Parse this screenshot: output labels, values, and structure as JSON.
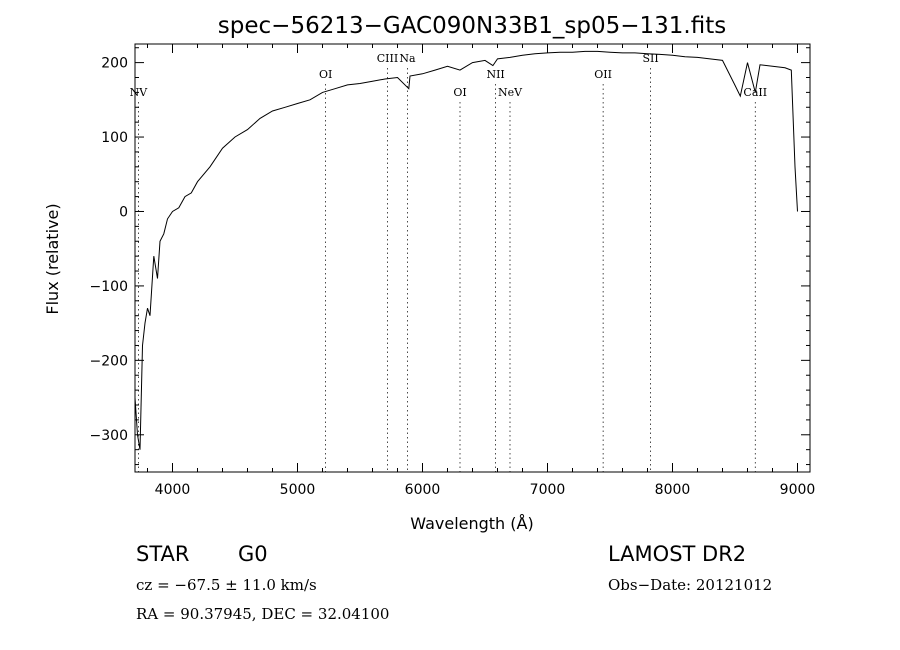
{
  "chart_data": {
    "type": "line",
    "title": "spec−56213−GAC090N33B1_sp05−131.fits",
    "xlabel": "Wavelength (Å)",
    "ylabel": "Flux (relative)",
    "xlim": [
      3700,
      9100
    ],
    "ylim": [
      -350,
      225
    ],
    "x_ticks": [
      4000,
      5000,
      6000,
      7000,
      8000,
      9000
    ],
    "y_ticks": [
      -300,
      -200,
      -100,
      0,
      100,
      200
    ],
    "y_tick_labels": [
      "−300",
      "−200",
      "−100",
      "0",
      "100",
      "200"
    ],
    "grid": false,
    "series": [
      {
        "x": [
          3700,
          3720,
          3740,
          3760,
          3780,
          3800,
          3820,
          3850,
          3880,
          3900,
          3930,
          3960,
          4000,
          4050,
          4100,
          4150,
          4200,
          4300,
          4400,
          4500,
          4600,
          4700,
          4800,
          4900,
          5000,
          5100,
          5200,
          5300,
          5400,
          5500,
          5600,
          5700,
          5800,
          5890,
          5900,
          6000,
          6100,
          6200,
          6300,
          6400,
          6500,
          6563,
          6600,
          6700,
          6800,
          6900,
          7000,
          7100,
          7200,
          7300,
          7400,
          7500,
          7600,
          7700,
          7800,
          7900,
          8000,
          8100,
          8200,
          8300,
          8400,
          8498,
          8542,
          8600,
          8662,
          8700,
          8800,
          8900,
          8950,
          8980,
          9000
        ],
        "y": [
          -250,
          -300,
          -320,
          -180,
          -150,
          -130,
          -140,
          -60,
          -90,
          -40,
          -30,
          -10,
          0,
          5,
          20,
          25,
          40,
          60,
          85,
          100,
          110,
          125,
          135,
          140,
          145,
          150,
          160,
          165,
          170,
          172,
          175,
          178,
          180,
          165,
          182,
          185,
          190,
          195,
          190,
          200,
          203,
          196,
          205,
          207,
          210,
          212,
          213,
          214,
          214,
          215,
          215,
          214,
          213,
          213,
          212,
          211,
          210,
          208,
          207,
          205,
          203,
          170,
          155,
          200,
          160,
          197,
          195,
          193,
          190,
          60,
          0
        ]
      }
    ],
    "line_markers": [
      {
        "name": "NV",
        "wavelength": 3727,
        "label_level": "low"
      },
      {
        "name": "OI",
        "wavelength": 5225,
        "label_level": "mid"
      },
      {
        "name": "CIII",
        "wavelength": 5720,
        "label_level": "high"
      },
      {
        "name": "Na",
        "wavelength": 5880,
        "label_level": "high"
      },
      {
        "name": "OI",
        "wavelength": 6300,
        "label_level": "low"
      },
      {
        "name": "NII",
        "wavelength": 6585,
        "label_level": "mid"
      },
      {
        "name": "NeV",
        "wavelength": 6700,
        "label_level": "low"
      },
      {
        "name": "OII",
        "wavelength": 7445,
        "label_level": "mid"
      },
      {
        "name": "SII",
        "wavelength": 7825,
        "label_level": "high"
      },
      {
        "name": "CaII",
        "wavelength": 8662,
        "label_level": "low"
      }
    ]
  },
  "info": {
    "object_type": "STAR",
    "subclass": "G0",
    "survey": "LAMOST DR2",
    "velocity": "cz = −67.5 ± 11.0 km/s",
    "obs_date": "Obs−Date: 20121012",
    "coords": "RA =  90.37945, DEC =  32.04100"
  }
}
